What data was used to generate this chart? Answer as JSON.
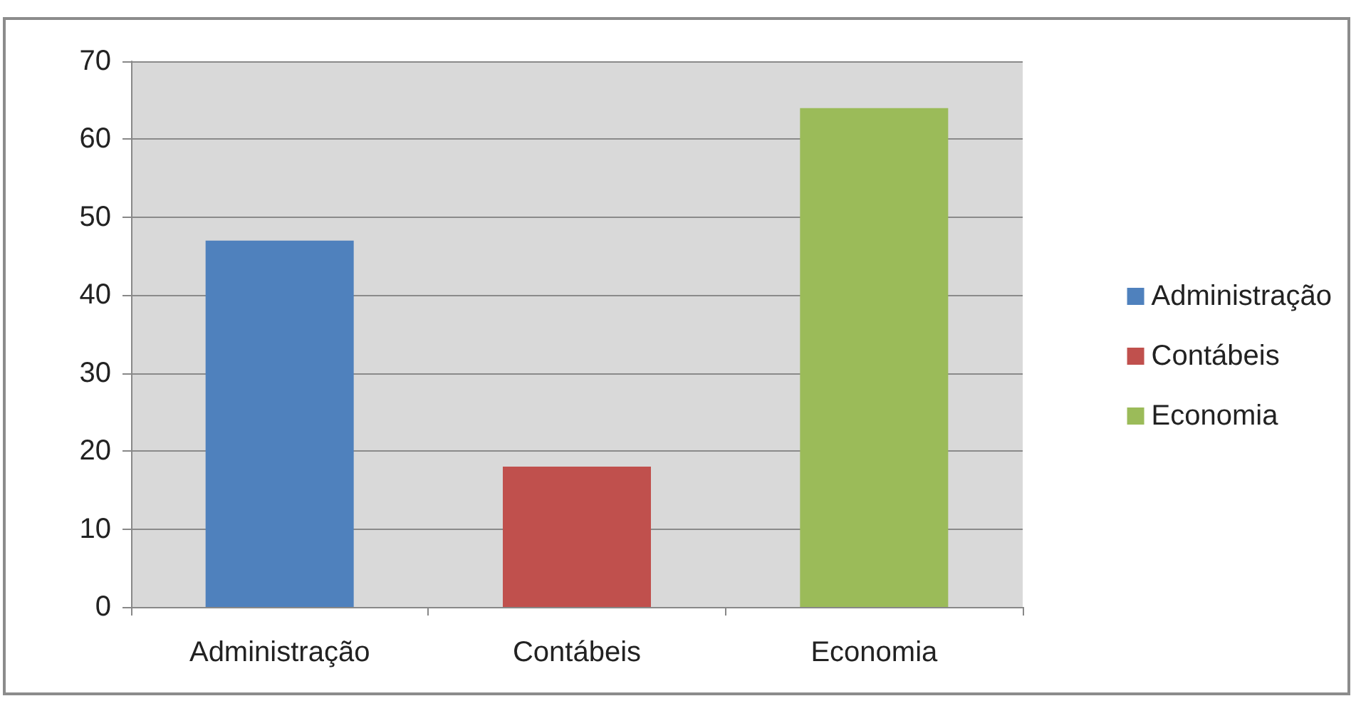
{
  "chart_data": {
    "type": "bar",
    "categories": [
      "Administração",
      "Contábeis",
      "Economia"
    ],
    "series": [
      {
        "name": "Administração",
        "color": "#4f81bd",
        "values": [
          47,
          null,
          null
        ]
      },
      {
        "name": "Contábeis",
        "color": "#c0504d",
        "values": [
          null,
          18,
          null
        ]
      },
      {
        "name": "Economia",
        "color": "#9bbb59",
        "values": [
          null,
          null,
          64
        ]
      }
    ],
    "ylim": [
      0,
      70
    ],
    "yticks": [
      0,
      10,
      20,
      30,
      40,
      50,
      60,
      70
    ],
    "grid": "y",
    "legend": "right"
  }
}
